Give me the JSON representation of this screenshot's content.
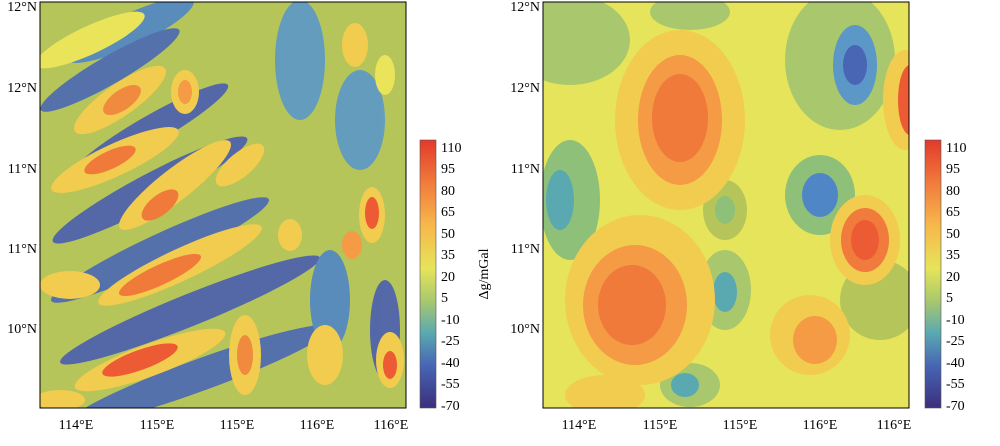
{
  "panels": [
    {
      "id": "left",
      "lat_labels": [
        "12°N",
        "12°N",
        "11°N",
        "11°N",
        "10°N"
      ],
      "lon_labels": [
        "114°E",
        "115°E",
        "115°E",
        "116°E",
        "116°E"
      ]
    },
    {
      "id": "right",
      "lat_labels": [
        "12°N",
        "12°N",
        "11°N",
        "11°N",
        "10°N"
      ],
      "lon_labels": [
        "114°E",
        "115°E",
        "115°E",
        "116°E",
        "116°E"
      ]
    }
  ],
  "colorbar": {
    "title": "Δg/mGal",
    "ticks": [
      "110",
      "95",
      "80",
      "65",
      "50",
      "35",
      "20",
      "5",
      "-10",
      "-25",
      "-40",
      "-55",
      "-70"
    ],
    "colors": [
      "#e23a2b",
      "#ec5b33",
      "#f17b3c",
      "#f59a45",
      "#f7b84b",
      "#f4d450",
      "#e6e45a",
      "#c4d362",
      "#8fc07a",
      "#5aa9b0",
      "#4586c8",
      "#4866b4",
      "#48479c",
      "#3a2f7d"
    ]
  }
}
